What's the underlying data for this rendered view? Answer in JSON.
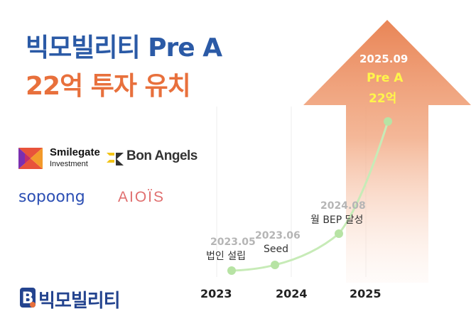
{
  "title": {
    "line1": "빅모빌리티 Pre A",
    "line2": "22억 투자 유치"
  },
  "investors": {
    "smilegate": {
      "name": "Smilegate",
      "sub": "Investment"
    },
    "bon_angels": "Bon Angels",
    "sopoong": "sopoong",
    "aiois": "AIOÏS"
  },
  "brand": {
    "name": "빅모빌리티",
    "mark": "B"
  },
  "timeline": {
    "years": [
      "2023",
      "2024",
      "2025"
    ],
    "milestones": [
      {
        "date": "2023.05",
        "event": "법인 설립"
      },
      {
        "date": "2023.06",
        "event": "Seed"
      },
      {
        "date": "2024.08",
        "event": "월 BEP 달성"
      }
    ],
    "highlight": {
      "date": "2025.09",
      "round": "Pre A",
      "amount": "22억"
    }
  },
  "colors": {
    "blue": "#2b5aa6",
    "orange": "#e8703c",
    "green": "#b7e3a4",
    "highlight_yellow": "#fff64a"
  }
}
